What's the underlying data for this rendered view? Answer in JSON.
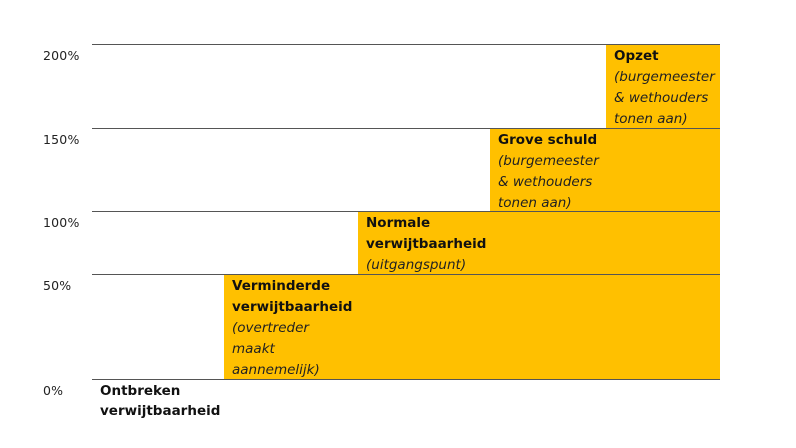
{
  "chart_data": {
    "type": "bar",
    "ylim": [
      0,
      200
    ],
    "yticks": [
      "0%",
      "50%",
      "100%",
      "150%",
      "200%"
    ],
    "ytick_values": [
      0,
      50,
      100,
      150,
      200
    ],
    "categories": [
      {
        "title": "Ontbreken\nverwijtbaarheid",
        "subtitle": "",
        "value": 0
      },
      {
        "title": "Verminderde\nverwijtbaarheid",
        "subtitle": "(overtreder\nmaakt\naannemelijk)",
        "value": 50
      },
      {
        "title": "Normale\nverwijtbaarheid",
        "subtitle": "(uitgangspunt)",
        "value": 100
      },
      {
        "title": "Grove schuld",
        "subtitle": "(burgemeester\n& wethouders\ntonen aan)",
        "value": 150
      },
      {
        "title": "Opzet",
        "subtitle": "(burgemeester\n& wethouders\ntonen aan)",
        "value": 200
      }
    ],
    "colors": {
      "bar": "#FFC000",
      "grid": "#555555"
    },
    "grid": true
  }
}
